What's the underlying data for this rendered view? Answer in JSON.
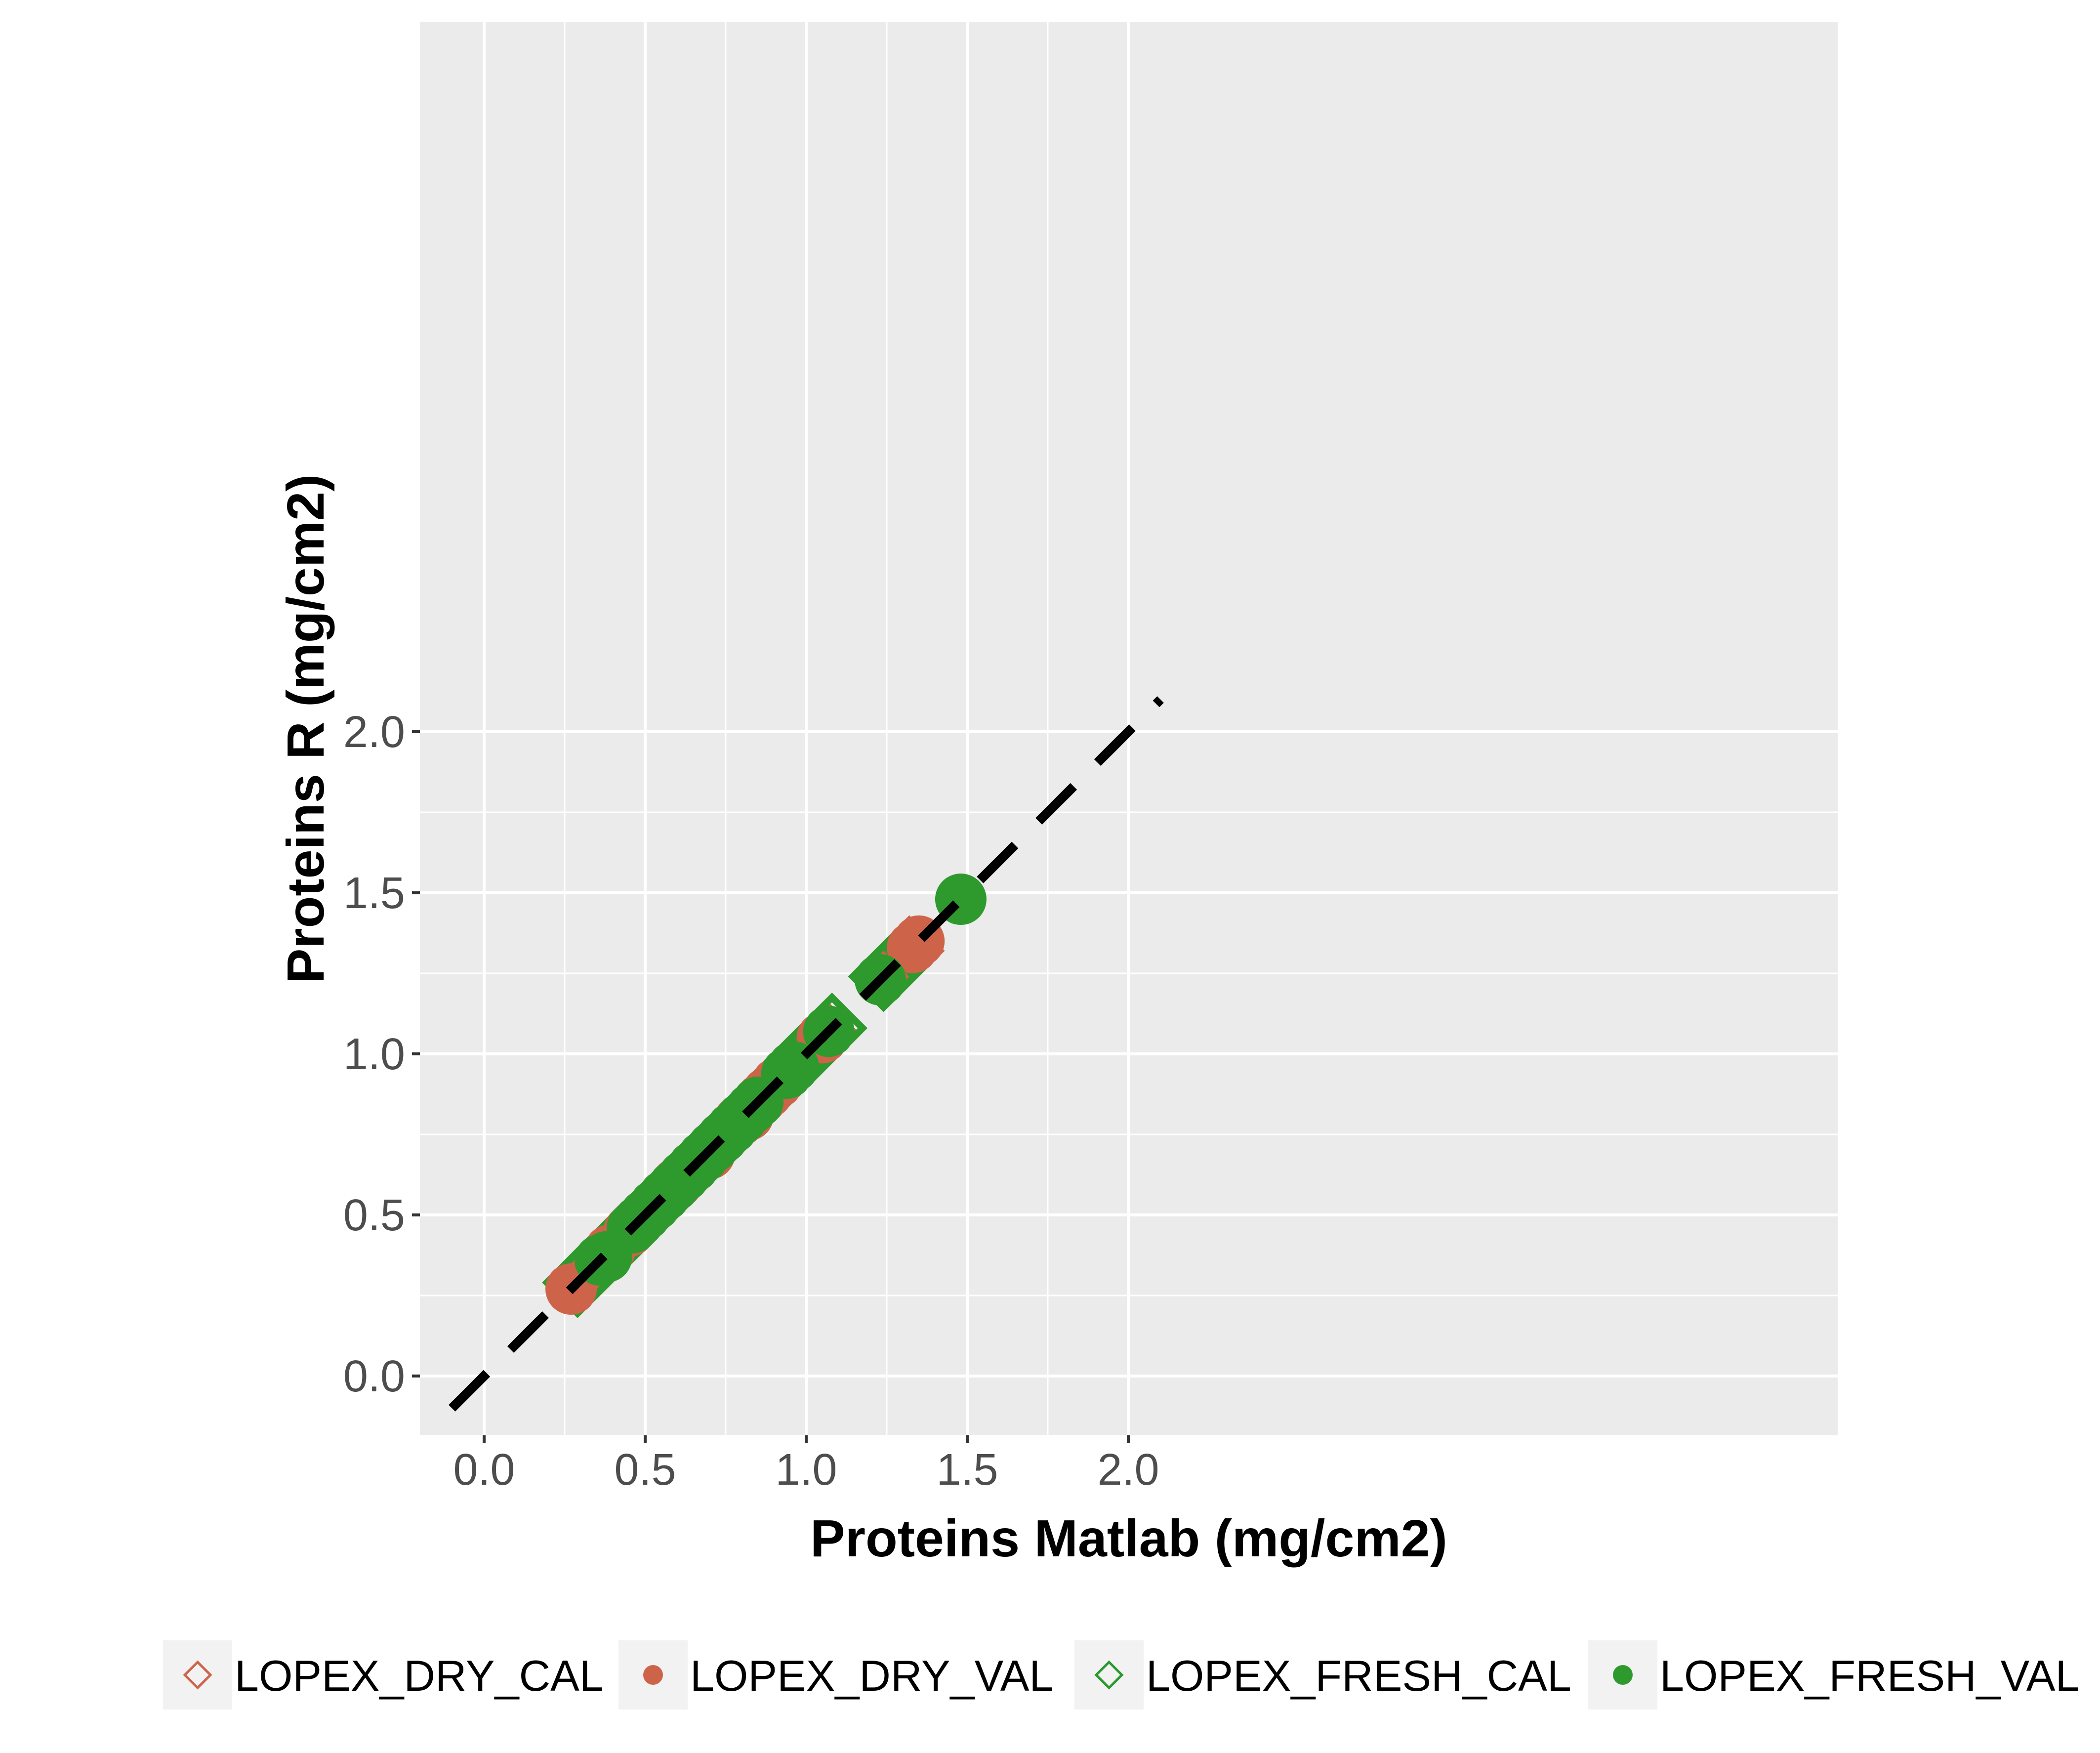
{
  "chart_data": {
    "type": "scatter",
    "title": "",
    "xlabel": "Proteins Matlab (mg/cm2)",
    "ylabel": "Proteins R (mg/cm2)",
    "xlim": [
      -0.1,
      2.1
    ],
    "ylim": [
      -0.1,
      2.1
    ],
    "x_ticks": [
      "0.0",
      "0.5",
      "1.0",
      "1.5",
      "2.0"
    ],
    "y_ticks": [
      "0.0",
      "0.5",
      "1.0",
      "1.5",
      "2.0"
    ],
    "grid": true,
    "legend_position": "bottom",
    "reference_line": {
      "type": "identity",
      "style": "dashed",
      "color": "#000000"
    },
    "colors": {
      "dry": "#CD6449",
      "fresh": "#2E9A2E",
      "panel": "#EBEBEB",
      "grid": "#FFFFFF"
    },
    "series": [
      {
        "name": "LOPEX_DRY_CAL",
        "marker": "open-diamond",
        "color": "#CD6449",
        "points": [
          [
            0.3,
            0.3
          ],
          [
            0.33,
            0.33
          ],
          [
            0.36,
            0.36
          ],
          [
            0.4,
            0.4
          ],
          [
            0.43,
            0.43
          ],
          [
            0.46,
            0.46
          ],
          [
            0.5,
            0.5
          ],
          [
            0.53,
            0.53
          ],
          [
            0.56,
            0.56
          ],
          [
            0.6,
            0.6
          ],
          [
            0.63,
            0.63
          ],
          [
            0.66,
            0.66
          ],
          [
            0.7,
            0.7
          ],
          [
            0.73,
            0.73
          ],
          [
            0.76,
            0.76
          ],
          [
            0.8,
            0.8
          ],
          [
            0.83,
            0.83
          ],
          [
            0.86,
            0.86
          ],
          [
            0.9,
            0.9
          ],
          [
            0.93,
            0.93
          ],
          [
            0.97,
            0.97
          ],
          [
            1.0,
            1.0
          ],
          [
            1.03,
            1.03
          ],
          [
            1.06,
            1.06
          ],
          [
            1.25,
            1.25
          ],
          [
            1.29,
            1.29
          ],
          [
            1.32,
            1.32
          ]
        ]
      },
      {
        "name": "LOPEX_DRY_VAL",
        "marker": "filled-circle",
        "color": "#CD6449",
        "points": [
          [
            0.27,
            0.27
          ],
          [
            0.39,
            0.39
          ],
          [
            0.45,
            0.45
          ],
          [
            0.47,
            0.47
          ],
          [
            0.56,
            0.56
          ],
          [
            0.6,
            0.6
          ],
          [
            0.65,
            0.65
          ],
          [
            0.7,
            0.69
          ],
          [
            0.74,
            0.74
          ],
          [
            0.79,
            0.79
          ],
          [
            0.82,
            0.81
          ],
          [
            0.86,
            0.86
          ],
          [
            0.88,
            0.88
          ],
          [
            0.91,
            0.91
          ],
          [
            1.05,
            1.05
          ],
          [
            1.33,
            1.33
          ],
          [
            1.35,
            1.35
          ]
        ]
      },
      {
        "name": "LOPEX_FRESH_CAL",
        "marker": "open-diamond",
        "color": "#2E9A2E",
        "points": [
          [
            0.29,
            0.29
          ],
          [
            0.32,
            0.32
          ],
          [
            0.35,
            0.35
          ],
          [
            0.38,
            0.38
          ],
          [
            0.41,
            0.41
          ],
          [
            0.44,
            0.44
          ],
          [
            0.48,
            0.48
          ],
          [
            0.51,
            0.51
          ],
          [
            0.54,
            0.54
          ],
          [
            0.58,
            0.58
          ],
          [
            0.61,
            0.61
          ],
          [
            0.64,
            0.64
          ],
          [
            0.68,
            0.68
          ],
          [
            0.71,
            0.71
          ],
          [
            0.74,
            0.74
          ],
          [
            0.78,
            0.78
          ],
          [
            0.81,
            0.81
          ],
          [
            0.84,
            0.84
          ],
          [
            0.88,
            0.88
          ],
          [
            0.91,
            0.91
          ],
          [
            0.95,
            0.95
          ],
          [
            0.98,
            0.98
          ],
          [
            1.02,
            1.02
          ],
          [
            1.05,
            1.05
          ],
          [
            1.08,
            1.08
          ],
          [
            1.24,
            1.24
          ],
          [
            1.27,
            1.27
          ],
          [
            1.3,
            1.3
          ]
        ]
      },
      {
        "name": "LOPEX_FRESH_VAL",
        "marker": "filled-circle",
        "color": "#2E9A2E",
        "points": [
          [
            0.36,
            0.36
          ],
          [
            0.38,
            0.37
          ],
          [
            0.46,
            0.46
          ],
          [
            0.48,
            0.48
          ],
          [
            0.5,
            0.5
          ],
          [
            0.53,
            0.53
          ],
          [
            0.56,
            0.56
          ],
          [
            0.59,
            0.59
          ],
          [
            0.62,
            0.62
          ],
          [
            0.65,
            0.65
          ],
          [
            0.68,
            0.68
          ],
          [
            0.71,
            0.71
          ],
          [
            0.74,
            0.74
          ],
          [
            0.77,
            0.77
          ],
          [
            0.8,
            0.8
          ],
          [
            0.83,
            0.83
          ],
          [
            0.85,
            0.85
          ],
          [
            0.94,
            0.94
          ],
          [
            0.96,
            0.96
          ],
          [
            1.07,
            1.07
          ],
          [
            1.23,
            1.23
          ],
          [
            1.48,
            1.48
          ]
        ]
      }
    ]
  }
}
